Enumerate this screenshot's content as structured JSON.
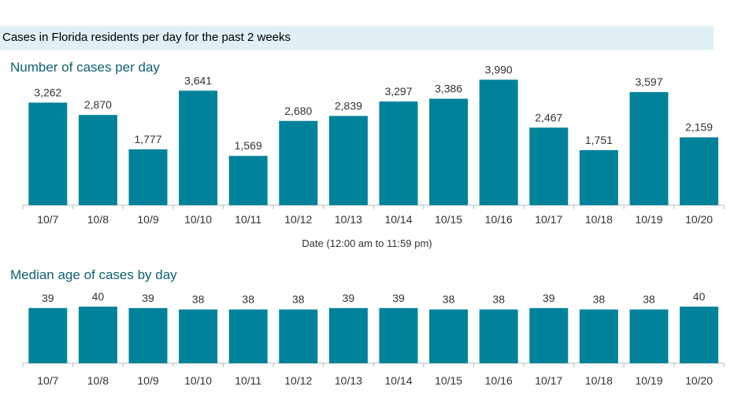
{
  "header": {
    "banner_title": "Cases in Florida residents per day for the past 2 weeks"
  },
  "colors": {
    "bar": "#00839a",
    "title": "#0f6273",
    "banner_bg": "#dff1f5",
    "axis": "#bbbbbb"
  },
  "chart_data": [
    {
      "type": "bar",
      "title": "Number of cases per day",
      "xlabel": "Date (12:00 am to 11:59 pm)",
      "ylabel": "",
      "categories": [
        "10/7",
        "10/8",
        "10/9",
        "10/10",
        "10/11",
        "10/12",
        "10/13",
        "10/14",
        "10/15",
        "10/16",
        "10/17",
        "10/18",
        "10/19",
        "10/20"
      ],
      "values": [
        3262,
        2870,
        1777,
        3641,
        1569,
        2680,
        2839,
        3297,
        3386,
        3990,
        2467,
        1751,
        3597,
        2159
      ],
      "value_labels": [
        "3,262",
        "2,870",
        "1,777",
        "3,641",
        "1,569",
        "2,680",
        "2,839",
        "3,297",
        "3,386",
        "3,990",
        "2,467",
        "1,751",
        "3,597",
        "2,159"
      ],
      "ylim": [
        0,
        4000
      ],
      "grid": false,
      "legend": "none"
    },
    {
      "type": "bar",
      "title": "Median age of cases by day",
      "xlabel": "",
      "ylabel": "",
      "categories": [
        "10/7",
        "10/8",
        "10/9",
        "10/10",
        "10/11",
        "10/12",
        "10/13",
        "10/14",
        "10/15",
        "10/16",
        "10/17",
        "10/18",
        "10/19",
        "10/20"
      ],
      "values": [
        39,
        40,
        39,
        38,
        38,
        38,
        39,
        39,
        38,
        38,
        39,
        38,
        38,
        40
      ],
      "value_labels": [
        "39",
        "40",
        "39",
        "38",
        "38",
        "38",
        "39",
        "39",
        "38",
        "38",
        "39",
        "38",
        "38",
        "40"
      ],
      "ylim": [
        0,
        40
      ],
      "grid": false,
      "legend": "none"
    }
  ]
}
